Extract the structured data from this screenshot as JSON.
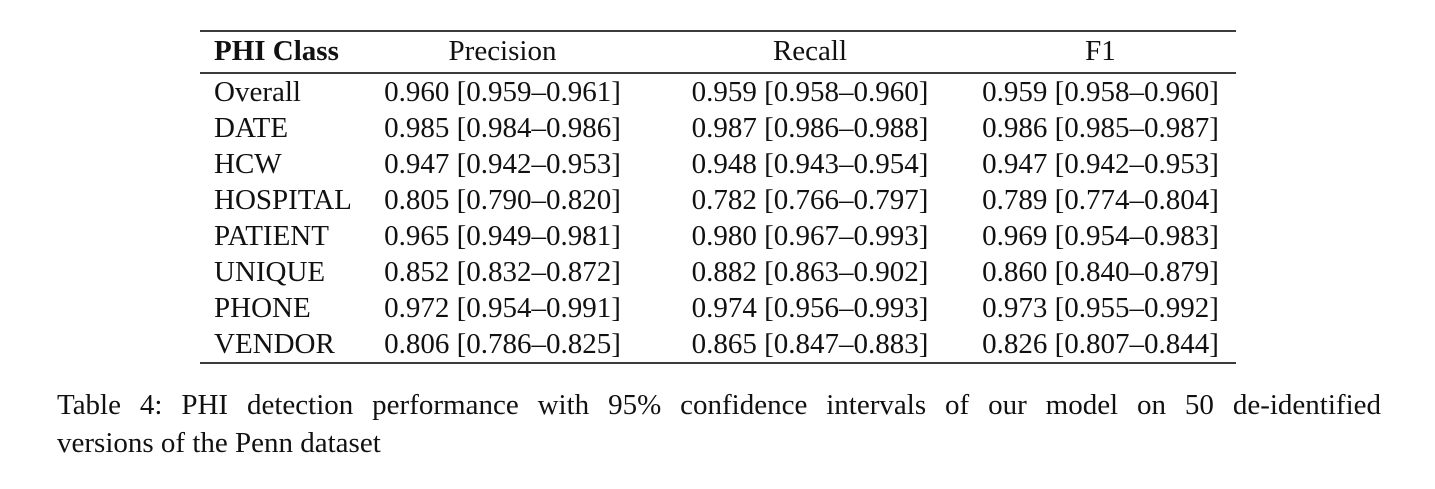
{
  "table": {
    "columns": [
      "PHI Class",
      "Precision",
      "Recall",
      "F1"
    ],
    "rows": [
      {
        "phi_class": "Overall",
        "precision": "0.960 [0.959–0.961]",
        "recall": "0.959 [0.958–0.960]",
        "f1": "0.959 [0.958–0.960]"
      },
      {
        "phi_class": "DATE",
        "precision": "0.985 [0.984–0.986]",
        "recall": "0.987 [0.986–0.988]",
        "f1": "0.986 [0.985–0.987]"
      },
      {
        "phi_class": "HCW",
        "precision": "0.947 [0.942–0.953]",
        "recall": "0.948 [0.943–0.954]",
        "f1": "0.947 [0.942–0.953]"
      },
      {
        "phi_class": "HOSPITAL",
        "precision": "0.805 [0.790–0.820]",
        "recall": "0.782 [0.766–0.797]",
        "f1": "0.789 [0.774–0.804]"
      },
      {
        "phi_class": "PATIENT",
        "precision": "0.965 [0.949–0.981]",
        "recall": "0.980 [0.967–0.993]",
        "f1": "0.969 [0.954–0.983]"
      },
      {
        "phi_class": "UNIQUE",
        "precision": "0.852 [0.832–0.872]",
        "recall": "0.882 [0.863–0.902]",
        "f1": "0.860 [0.840–0.879]"
      },
      {
        "phi_class": "PHONE",
        "precision": "0.972 [0.954–0.991]",
        "recall": "0.974 [0.956–0.993]",
        "f1": "0.973 [0.955–0.992]"
      },
      {
        "phi_class": "VENDOR",
        "precision": "0.806 [0.786–0.825]",
        "recall": "0.865 [0.847–0.883]",
        "f1": "0.826 [0.807–0.844]"
      }
    ]
  },
  "caption": {
    "line1": "Table 4:  PHI detection performance with 95% confidence intervals of our model on 50 de-identified",
    "line2": "versions of the Penn dataset"
  }
}
